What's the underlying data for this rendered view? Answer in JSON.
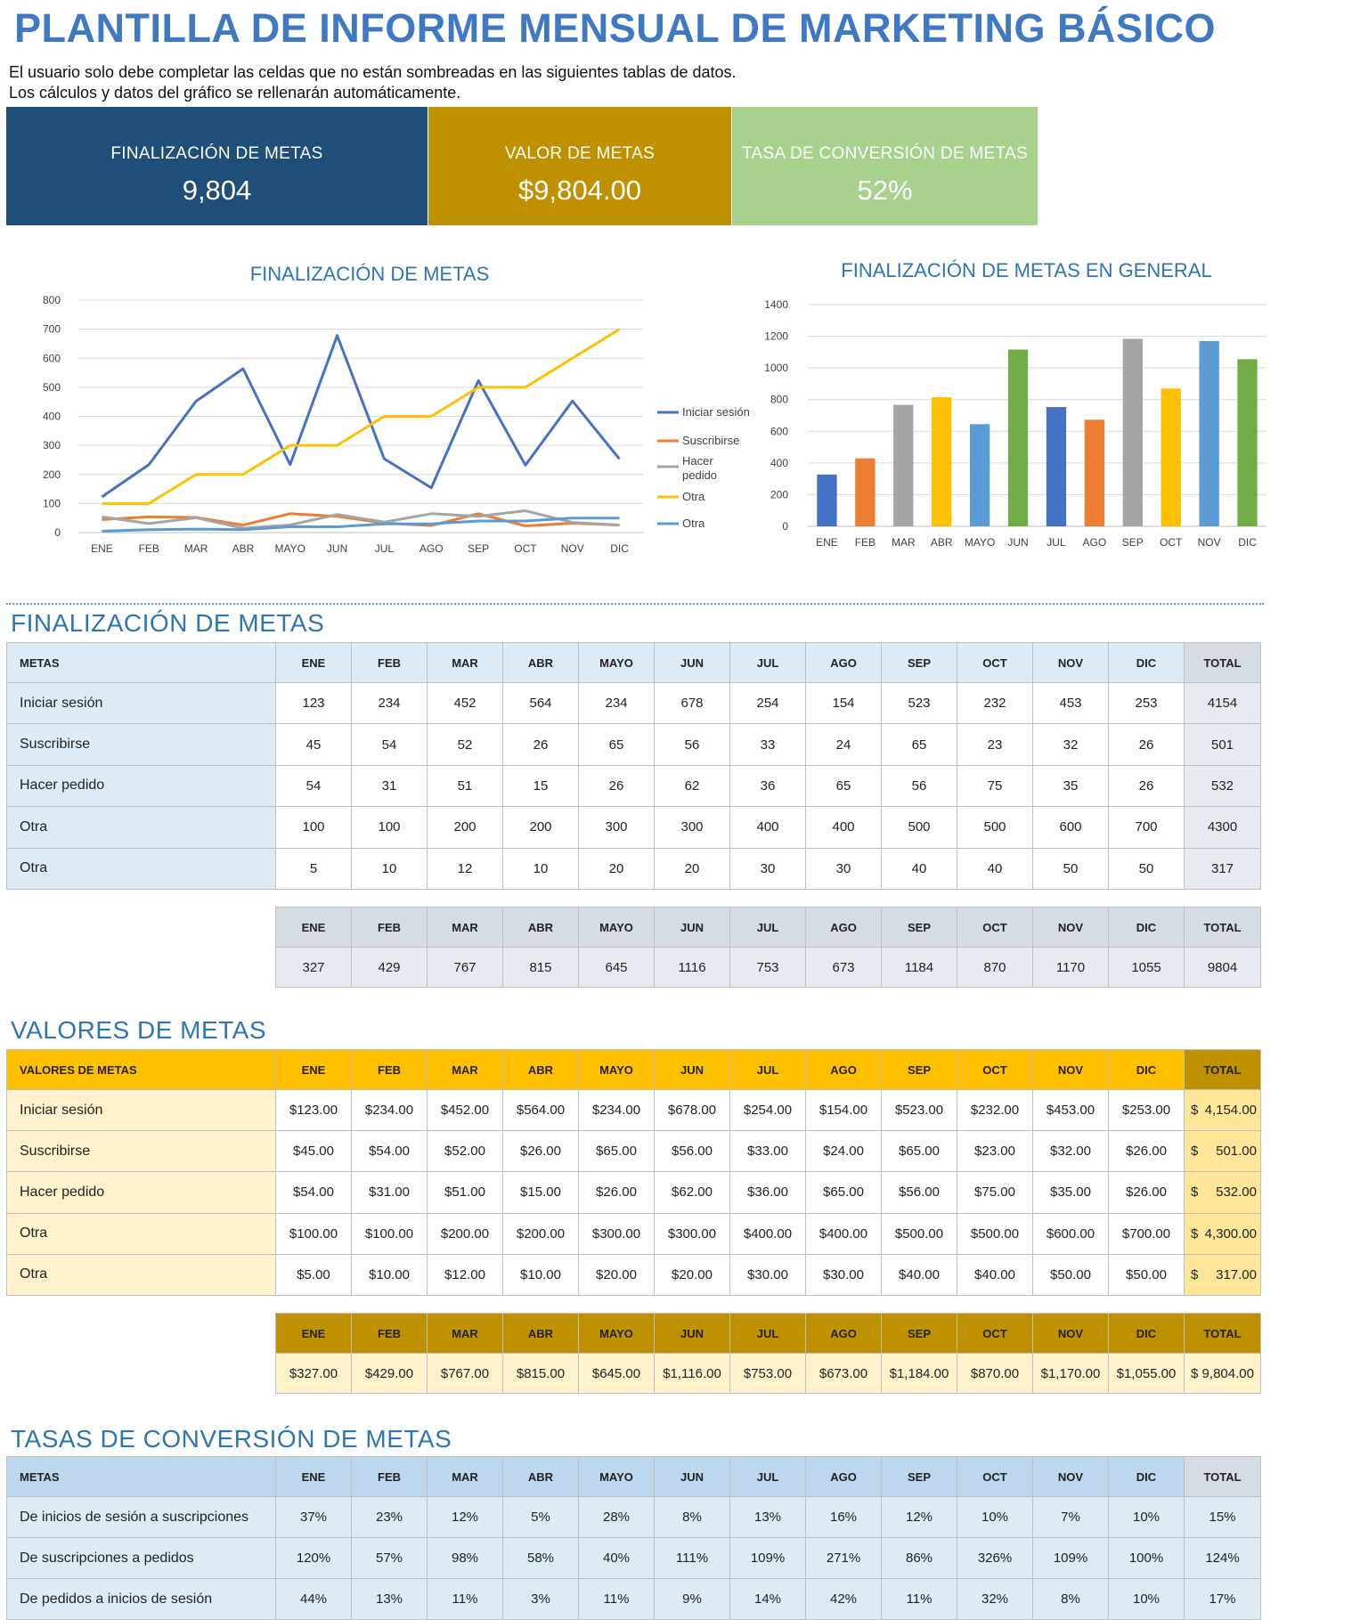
{
  "title": "PLANTILLA DE INFORME MENSUAL DE MARKETING BÁSICO",
  "instructions": [
    "El usuario solo debe completar las celdas que no están sombreadas en las siguientes tablas de datos.",
    "Los cálculos y datos del gráfico se rellenarán automáticamente."
  ],
  "kpis": {
    "completion": {
      "label": "FINALIZACIÓN DE METAS",
      "value": "9,804"
    },
    "value": {
      "label": "VALOR DE METAS",
      "value": "$9,804.00"
    },
    "conversion": {
      "label": "TASA DE CONVERSIÓN DE METAS",
      "value": "52%"
    }
  },
  "colors": {
    "blue_dark": "#1f4e79",
    "gold": "#bf9000",
    "green": "#a9d18e",
    "section": "#2e75b6"
  },
  "chart_data": [
    {
      "type": "line",
      "title": "FINALIZACIÓN DE METAS",
      "categories": [
        "ENE",
        "FEB",
        "MAR",
        "ABR",
        "MAYO",
        "JUN",
        "JUL",
        "AGO",
        "SEP",
        "OCT",
        "NOV",
        "DIC"
      ],
      "ylim": [
        0,
        800
      ],
      "yticks": [
        "0",
        "100",
        "200",
        "300",
        "400",
        "500",
        "600",
        "700",
        "800"
      ],
      "grid": true,
      "legend": "right",
      "series": [
        {
          "name": "Iniciar sesión",
          "color": "#4472c4",
          "values": [
            123,
            234,
            452,
            564,
            234,
            678,
            254,
            154,
            523,
            232,
            453,
            253
          ]
        },
        {
          "name": "Suscribirse",
          "color": "#ed7d31",
          "values": [
            45,
            54,
            52,
            26,
            65,
            56,
            33,
            24,
            65,
            23,
            32,
            26
          ]
        },
        {
          "name": "Hacer pedido",
          "color": "#a5a5a5",
          "values": [
            54,
            31,
            51,
            15,
            26,
            62,
            36,
            65,
            56,
            75,
            35,
            26
          ]
        },
        {
          "name": "Otra",
          "color": "#ffc000",
          "values": [
            100,
            100,
            200,
            200,
            300,
            300,
            400,
            400,
            500,
            500,
            600,
            700
          ]
        },
        {
          "name": "Otra",
          "color": "#5b9bd5",
          "values": [
            5,
            10,
            12,
            10,
            20,
            20,
            30,
            30,
            40,
            40,
            50,
            50
          ]
        }
      ]
    },
    {
      "type": "bar",
      "title": "FINALIZACIÓN DE METAS EN GENERAL",
      "categories": [
        "ENE",
        "FEB",
        "MAR",
        "ABR",
        "MAYO",
        "JUN",
        "JUL",
        "AGO",
        "SEP",
        "OCT",
        "NOV",
        "DIC"
      ],
      "values": [
        327,
        429,
        767,
        815,
        645,
        1116,
        753,
        673,
        1184,
        870,
        1170,
        1055
      ],
      "colors": [
        "#4472c4",
        "#ed7d31",
        "#a5a5a5",
        "#ffc000",
        "#5b9bd5",
        "#70ad47",
        "#4472c4",
        "#ed7d31",
        "#a5a5a5",
        "#ffc000",
        "#5b9bd5",
        "#70ad47"
      ],
      "ylim": [
        0,
        1400
      ],
      "yticks": [
        "0",
        "200",
        "400",
        "600",
        "800",
        "1000",
        "1200",
        "1400"
      ],
      "grid": true
    }
  ],
  "sections": {
    "completion": "FINALIZACIÓN DE METAS",
    "values": "VALORES DE METAS",
    "rates": "TASAS DE CONVERSIÓN DE METAS"
  },
  "months": [
    "ENE",
    "FEB",
    "MAR",
    "ABR",
    "MAYO",
    "JUN",
    "JUL",
    "AGO",
    "SEP",
    "OCT",
    "NOV",
    "DIC"
  ],
  "total_label": "TOTAL",
  "completion_table": {
    "header": "METAS",
    "rows": [
      {
        "name": "Iniciar sesión",
        "cells": [
          "123",
          "234",
          "452",
          "564",
          "234",
          "678",
          "254",
          "154",
          "523",
          "232",
          "453",
          "253"
        ],
        "total": "4154"
      },
      {
        "name": "Suscribirse",
        "cells": [
          "45",
          "54",
          "52",
          "26",
          "65",
          "56",
          "33",
          "24",
          "65",
          "23",
          "32",
          "26"
        ],
        "total": "501"
      },
      {
        "name": "Hacer pedido",
        "cells": [
          "54",
          "31",
          "51",
          "15",
          "26",
          "62",
          "36",
          "65",
          "56",
          "75",
          "35",
          "26"
        ],
        "total": "532"
      },
      {
        "name": "Otra",
        "cells": [
          "100",
          "100",
          "200",
          "200",
          "300",
          "300",
          "400",
          "400",
          "500",
          "500",
          "600",
          "700"
        ],
        "total": "4300"
      },
      {
        "name": "Otra",
        "cells": [
          "5",
          "10",
          "12",
          "10",
          "20",
          "20",
          "30",
          "30",
          "40",
          "40",
          "50",
          "50"
        ],
        "total": "317"
      }
    ],
    "totals": {
      "cells": [
        "327",
        "429",
        "767",
        "815",
        "645",
        "1116",
        "753",
        "673",
        "1184",
        "870",
        "1170",
        "1055"
      ],
      "total": "9804"
    }
  },
  "values_table": {
    "header": "VALORES DE METAS",
    "rows": [
      {
        "name": "Iniciar sesión",
        "cells": [
          "$123.00",
          "$234.00",
          "$452.00",
          "$564.00",
          "$234.00",
          "$678.00",
          "$254.00",
          "$154.00",
          "$523.00",
          "$232.00",
          "$453.00",
          "$253.00"
        ],
        "total": "4,154.00"
      },
      {
        "name": "Suscribirse",
        "cells": [
          "$45.00",
          "$54.00",
          "$52.00",
          "$26.00",
          "$65.00",
          "$56.00",
          "$33.00",
          "$24.00",
          "$65.00",
          "$23.00",
          "$32.00",
          "$26.00"
        ],
        "total": "501.00"
      },
      {
        "name": "Hacer pedido",
        "cells": [
          "$54.00",
          "$31.00",
          "$51.00",
          "$15.00",
          "$26.00",
          "$62.00",
          "$36.00",
          "$65.00",
          "$56.00",
          "$75.00",
          "$35.00",
          "$26.00"
        ],
        "total": "532.00"
      },
      {
        "name": "Otra",
        "cells": [
          "$100.00",
          "$100.00",
          "$200.00",
          "$200.00",
          "$300.00",
          "$300.00",
          "$400.00",
          "$400.00",
          "$500.00",
          "$500.00",
          "$600.00",
          "$700.00"
        ],
        "total": "4,300.00"
      },
      {
        "name": "Otra",
        "cells": [
          "$5.00",
          "$10.00",
          "$12.00",
          "$10.00",
          "$20.00",
          "$20.00",
          "$30.00",
          "$30.00",
          "$40.00",
          "$40.00",
          "$50.00",
          "$50.00"
        ],
        "total": "317.00"
      }
    ],
    "currency": "$",
    "totals": {
      "cells": [
        "$327.00",
        "$429.00",
        "$767.00",
        "$815.00",
        "$645.00",
        "$1,116.00",
        "$753.00",
        "$673.00",
        "$1,184.00",
        "$870.00",
        "$1,170.00",
        "$1,055.00"
      ],
      "total": "$ 9,804.00"
    }
  },
  "rates_table": {
    "header": "METAS",
    "rows": [
      {
        "name": "De inicios de sesión a suscripciones",
        "cells": [
          "37%",
          "23%",
          "12%",
          "5%",
          "28%",
          "8%",
          "13%",
          "16%",
          "12%",
          "10%",
          "7%",
          "10%"
        ],
        "total": "15%"
      },
      {
        "name": "De suscripciones a pedidos",
        "cells": [
          "120%",
          "57%",
          "98%",
          "58%",
          "40%",
          "111%",
          "109%",
          "271%",
          "86%",
          "326%",
          "109%",
          "100%"
        ],
        "total": "124%"
      },
      {
        "name": "De pedidos a inicios de sesión",
        "cells": [
          "44%",
          "13%",
          "11%",
          "3%",
          "11%",
          "9%",
          "14%",
          "42%",
          "11%",
          "32%",
          "8%",
          "10%"
        ],
        "total": "17%"
      }
    ]
  }
}
